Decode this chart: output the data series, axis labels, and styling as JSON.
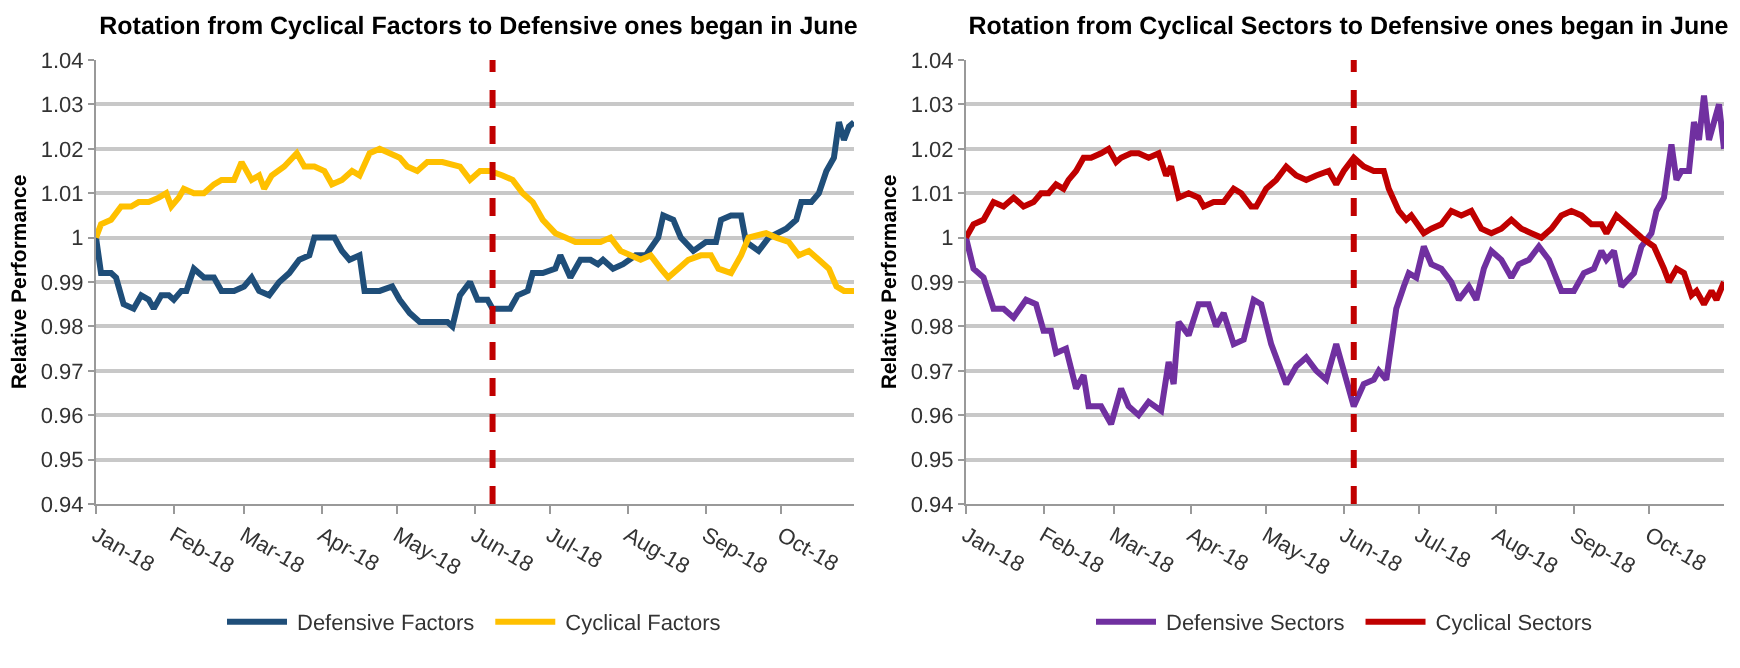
{
  "chart_data": [
    {
      "type": "line",
      "title": "Rotation from Cyclical Factors to Defensive ones began in June",
      "ylabel": "Relative Performance",
      "xlim": [
        "2018-01-01",
        "2018-10-30"
      ],
      "xticks": [
        {
          "value": "2018-01-01",
          "label": "Jan-18"
        },
        {
          "value": "2018-02-01",
          "label": "Feb-18"
        },
        {
          "value": "2018-03-01",
          "label": "Mar-18"
        },
        {
          "value": "2018-04-01",
          "label": "Apr-18"
        },
        {
          "value": "2018-05-01",
          "label": "May-18"
        },
        {
          "value": "2018-06-01",
          "label": "Jun-18"
        },
        {
          "value": "2018-07-01",
          "label": "Jul-18"
        },
        {
          "value": "2018-08-01",
          "label": "Aug-18"
        },
        {
          "value": "2018-09-01",
          "label": "Sep-18"
        },
        {
          "value": "2018-10-01",
          "label": "Oct-18"
        }
      ],
      "ylim": [
        0.94,
        1.04
      ],
      "yticks": [
        0.94,
        0.95,
        0.96,
        0.97,
        0.98,
        0.99,
        1,
        1.01,
        1.02,
        1.03,
        1.04
      ],
      "grid": "y",
      "legend": "bottom",
      "marker": "none",
      "line_style": "solid",
      "ref_lines": [
        {
          "axis": "x",
          "value": "2018-06-08",
          "color": "#c00000",
          "line_style": "dashed"
        }
      ],
      "series": [
        {
          "name": "Defensive Factors",
          "color": "#1f4e79",
          "x": [
            "2018-01-01",
            "2018-01-03",
            "2018-01-07",
            "2018-01-09",
            "2018-01-12",
            "2018-01-16",
            "2018-01-19",
            "2018-01-22",
            "2018-01-24",
            "2018-01-27",
            "2018-01-30",
            "2018-02-01",
            "2018-02-04",
            "2018-02-06",
            "2018-02-09",
            "2018-02-13",
            "2018-02-17",
            "2018-02-20",
            "2018-02-25",
            "2018-03-01",
            "2018-03-04",
            "2018-03-07",
            "2018-03-11",
            "2018-03-15",
            "2018-03-19",
            "2018-03-23",
            "2018-03-27",
            "2018-03-29",
            "2018-04-02",
            "2018-04-06",
            "2018-04-09",
            "2018-04-12",
            "2018-04-16",
            "2018-04-18",
            "2018-04-24",
            "2018-04-29",
            "2018-05-02",
            "2018-05-06",
            "2018-05-10",
            "2018-05-15",
            "2018-05-21",
            "2018-05-23",
            "2018-05-26",
            "2018-05-30",
            "2018-06-02",
            "2018-06-06",
            "2018-06-08",
            "2018-06-11",
            "2018-06-15",
            "2018-06-18",
            "2018-06-22",
            "2018-06-24",
            "2018-06-28",
            "2018-07-03",
            "2018-07-05",
            "2018-07-09",
            "2018-07-13",
            "2018-07-17",
            "2018-07-20",
            "2018-07-22",
            "2018-07-26",
            "2018-07-30",
            "2018-08-04",
            "2018-08-08",
            "2018-08-13",
            "2018-08-15",
            "2018-08-19",
            "2018-08-22",
            "2018-08-27",
            "2018-09-01",
            "2018-09-05",
            "2018-09-07",
            "2018-09-11",
            "2018-09-15",
            "2018-09-17",
            "2018-09-22",
            "2018-09-26",
            "2018-10-03",
            "2018-10-07",
            "2018-10-09",
            "2018-10-13",
            "2018-10-16",
            "2018-10-19",
            "2018-10-22",
            "2018-10-24",
            "2018-10-26",
            "2018-10-28",
            "2018-10-30"
          ],
          "values": [
            1.0,
            0.992,
            0.992,
            0.991,
            0.985,
            0.984,
            0.987,
            0.986,
            0.984,
            0.987,
            0.987,
            0.986,
            0.988,
            0.988,
            0.993,
            0.991,
            0.991,
            0.988,
            0.988,
            0.989,
            0.991,
            0.988,
            0.987,
            0.99,
            0.992,
            0.995,
            0.996,
            1.0,
            1.0,
            1.0,
            0.997,
            0.995,
            0.996,
            0.988,
            0.988,
            0.989,
            0.986,
            0.983,
            0.981,
            0.981,
            0.981,
            0.98,
            0.987,
            0.99,
            0.986,
            0.986,
            0.984,
            0.984,
            0.984,
            0.987,
            0.988,
            0.992,
            0.992,
            0.993,
            0.996,
            0.991,
            0.995,
            0.995,
            0.994,
            0.995,
            0.993,
            0.994,
            0.996,
            0.996,
            1.0,
            1.005,
            1.004,
            1.0,
            0.997,
            0.999,
            0.999,
            1.004,
            1.005,
            1.005,
            0.999,
            0.997,
            1.0,
            1.002,
            1.004,
            1.008,
            1.008,
            1.01,
            1.015,
            1.018,
            1.026,
            1.022,
            1.025,
            1.026
          ]
        },
        {
          "name": "Cyclical Factors",
          "color": "#ffc000",
          "x": [
            "2018-01-01",
            "2018-01-03",
            "2018-01-07",
            "2018-01-11",
            "2018-01-15",
            "2018-01-18",
            "2018-01-22",
            "2018-01-26",
            "2018-01-29",
            "2018-01-31",
            "2018-02-03",
            "2018-02-05",
            "2018-02-09",
            "2018-02-13",
            "2018-02-17",
            "2018-02-20",
            "2018-02-25",
            "2018-02-28",
            "2018-03-04",
            "2018-03-07",
            "2018-03-09",
            "2018-03-12",
            "2018-03-17",
            "2018-03-22",
            "2018-03-25",
            "2018-03-29",
            "2018-04-02",
            "2018-04-05",
            "2018-04-09",
            "2018-04-13",
            "2018-04-16",
            "2018-04-20",
            "2018-04-24",
            "2018-04-28",
            "2018-05-02",
            "2018-05-05",
            "2018-05-09",
            "2018-05-13",
            "2018-05-19",
            "2018-05-26",
            "2018-05-30",
            "2018-06-03",
            "2018-06-07",
            "2018-06-12",
            "2018-06-16",
            "2018-06-20",
            "2018-06-24",
            "2018-06-28",
            "2018-07-03",
            "2018-07-07",
            "2018-07-11",
            "2018-07-16",
            "2018-07-21",
            "2018-07-25",
            "2018-07-29",
            "2018-08-02",
            "2018-08-06",
            "2018-08-10",
            "2018-08-14",
            "2018-08-17",
            "2018-08-21",
            "2018-08-25",
            "2018-08-30",
            "2018-09-03",
            "2018-09-06",
            "2018-09-11",
            "2018-09-15",
            "2018-09-18",
            "2018-09-25",
            "2018-09-29",
            "2018-10-04",
            "2018-10-08",
            "2018-10-12",
            "2018-10-16",
            "2018-10-20",
            "2018-10-23",
            "2018-10-26",
            "2018-10-30"
          ],
          "values": [
            1.0,
            1.003,
            1.004,
            1.007,
            1.007,
            1.008,
            1.008,
            1.009,
            1.01,
            1.007,
            1.009,
            1.011,
            1.01,
            1.01,
            1.012,
            1.013,
            1.013,
            1.017,
            1.013,
            1.014,
            1.011,
            1.014,
            1.016,
            1.019,
            1.016,
            1.016,
            1.015,
            1.012,
            1.013,
            1.015,
            1.014,
            1.019,
            1.02,
            1.019,
            1.018,
            1.016,
            1.015,
            1.017,
            1.017,
            1.016,
            1.013,
            1.015,
            1.015,
            1.014,
            1.013,
            1.01,
            1.008,
            1.004,
            1.001,
            1.0,
            0.999,
            0.999,
            0.999,
            1.0,
            0.997,
            0.996,
            0.995,
            0.996,
            0.993,
            0.991,
            0.993,
            0.995,
            0.996,
            0.996,
            0.993,
            0.992,
            0.996,
            1.0,
            1.001,
            1.0,
            0.999,
            0.996,
            0.997,
            0.995,
            0.993,
            0.989,
            0.988,
            0.988
          ]
        }
      ]
    },
    {
      "type": "line",
      "title": "Rotation from Cyclical Sectors to Defensive ones began in June",
      "ylabel": "Relative Performance",
      "xlim": [
        "2018-01-01",
        "2018-10-31"
      ],
      "xticks": [
        {
          "value": "2018-01-01",
          "label": "Jan-18"
        },
        {
          "value": "2018-02-01",
          "label": "Feb-18"
        },
        {
          "value": "2018-03-01",
          "label": "Mar-18"
        },
        {
          "value": "2018-04-01",
          "label": "Apr-18"
        },
        {
          "value": "2018-05-01",
          "label": "May-18"
        },
        {
          "value": "2018-06-01",
          "label": "Jun-18"
        },
        {
          "value": "2018-07-01",
          "label": "Jul-18"
        },
        {
          "value": "2018-08-01",
          "label": "Aug-18"
        },
        {
          "value": "2018-09-01",
          "label": "Sep-18"
        },
        {
          "value": "2018-10-01",
          "label": "Oct-18"
        }
      ],
      "ylim": [
        0.94,
        1.04
      ],
      "yticks": [
        0.94,
        0.95,
        0.96,
        0.97,
        0.98,
        0.99,
        1,
        1.01,
        1.02,
        1.03,
        1.04
      ],
      "grid": "y",
      "legend": "bottom",
      "marker": "none",
      "line_style": "solid",
      "ref_lines": [
        {
          "axis": "x",
          "value": "2018-06-05",
          "color": "#c00000",
          "line_style": "dashed"
        }
      ],
      "series": [
        {
          "name": "Defensive Sectors",
          "color": "#7030a0",
          "x": [
            "2018-01-01",
            "2018-01-04",
            "2018-01-08",
            "2018-01-12",
            "2018-01-16",
            "2018-01-20",
            "2018-01-25",
            "2018-01-29",
            "2018-02-01",
            "2018-02-04",
            "2018-02-06",
            "2018-02-10",
            "2018-02-14",
            "2018-02-17",
            "2018-02-19",
            "2018-02-24",
            "2018-02-28",
            "2018-03-04",
            "2018-03-07",
            "2018-03-11",
            "2018-03-15",
            "2018-03-20",
            "2018-03-23",
            "2018-03-25",
            "2018-03-27",
            "2018-03-31",
            "2018-04-04",
            "2018-04-08",
            "2018-04-11",
            "2018-04-14",
            "2018-04-18",
            "2018-04-22",
            "2018-04-26",
            "2018-04-29",
            "2018-05-03",
            "2018-05-05",
            "2018-05-09",
            "2018-05-13",
            "2018-05-17",
            "2018-05-21",
            "2018-05-25",
            "2018-05-29",
            "2018-06-01",
            "2018-06-05",
            "2018-06-09",
            "2018-06-13",
            "2018-06-15",
            "2018-06-18",
            "2018-06-22",
            "2018-06-25",
            "2018-06-27",
            "2018-06-30",
            "2018-07-03",
            "2018-07-06",
            "2018-07-10",
            "2018-07-14",
            "2018-07-17",
            "2018-07-21",
            "2018-07-24",
            "2018-07-27",
            "2018-07-30",
            "2018-08-03",
            "2018-08-07",
            "2018-08-10",
            "2018-08-14",
            "2018-08-18",
            "2018-08-22",
            "2018-08-27",
            "2018-09-01",
            "2018-09-05",
            "2018-09-09",
            "2018-09-12",
            "2018-09-14",
            "2018-09-17",
            "2018-09-20",
            "2018-09-25",
            "2018-09-28",
            "2018-10-02",
            "2018-10-04",
            "2018-10-07",
            "2018-10-10",
            "2018-10-12",
            "2018-10-14",
            "2018-10-17",
            "2018-10-19",
            "2018-10-21",
            "2018-10-23",
            "2018-10-25",
            "2018-10-27",
            "2018-10-29",
            "2018-10-31"
          ],
          "values": [
            1.0,
            0.993,
            0.991,
            0.984,
            0.984,
            0.982,
            0.986,
            0.985,
            0.979,
            0.979,
            0.974,
            0.975,
            0.966,
            0.969,
            0.962,
            0.962,
            0.958,
            0.966,
            0.962,
            0.96,
            0.963,
            0.961,
            0.972,
            0.967,
            0.981,
            0.978,
            0.985,
            0.985,
            0.98,
            0.983,
            0.976,
            0.977,
            0.986,
            0.985,
            0.976,
            0.973,
            0.967,
            0.971,
            0.973,
            0.97,
            0.968,
            0.976,
            0.97,
            0.962,
            0.967,
            0.968,
            0.97,
            0.968,
            0.984,
            0.989,
            0.992,
            0.991,
            0.998,
            0.994,
            0.993,
            0.99,
            0.986,
            0.989,
            0.986,
            0.993,
            0.997,
            0.995,
            0.991,
            0.994,
            0.995,
            0.998,
            0.995,
            0.988,
            0.988,
            0.992,
            0.993,
            0.997,
            0.995,
            0.997,
            0.989,
            0.992,
            0.998,
            1.001,
            1.006,
            1.009,
            1.021,
            1.013,
            1.015,
            1.015,
            1.026,
            1.022,
            1.032,
            1.022,
            1.026,
            1.03,
            1.02
          ]
        },
        {
          "name": "Cyclical Sectors",
          "color": "#c00000",
          "x": [
            "2018-01-01",
            "2018-01-04",
            "2018-01-08",
            "2018-01-12",
            "2018-01-16",
            "2018-01-20",
            "2018-01-24",
            "2018-01-28",
            "2018-01-31",
            "2018-02-03",
            "2018-02-06",
            "2018-02-09",
            "2018-02-11",
            "2018-02-14",
            "2018-02-17",
            "2018-02-20",
            "2018-02-24",
            "2018-02-27",
            "2018-03-02",
            "2018-03-04",
            "2018-03-08",
            "2018-03-11",
            "2018-03-15",
            "2018-03-19",
            "2018-03-22",
            "2018-03-24",
            "2018-03-27",
            "2018-03-31",
            "2018-04-04",
            "2018-04-06",
            "2018-04-10",
            "2018-04-14",
            "2018-04-18",
            "2018-04-21",
            "2018-04-25",
            "2018-04-27",
            "2018-05-01",
            "2018-05-05",
            "2018-05-09",
            "2018-05-13",
            "2018-05-17",
            "2018-05-21",
            "2018-05-26",
            "2018-05-29",
            "2018-06-01",
            "2018-06-05",
            "2018-06-09",
            "2018-06-13",
            "2018-06-17",
            "2018-06-19",
            "2018-06-23",
            "2018-06-26",
            "2018-06-28",
            "2018-07-03",
            "2018-07-06",
            "2018-07-10",
            "2018-07-14",
            "2018-07-18",
            "2018-07-22",
            "2018-07-26",
            "2018-07-30",
            "2018-08-03",
            "2018-08-07",
            "2018-08-11",
            "2018-08-15",
            "2018-08-19",
            "2018-08-23",
            "2018-08-27",
            "2018-08-31",
            "2018-09-04",
            "2018-09-08",
            "2018-09-12",
            "2018-09-14",
            "2018-09-18",
            "2018-09-22",
            "2018-09-28",
            "2018-10-03",
            "2018-10-07",
            "2018-10-09",
            "2018-10-12",
            "2018-10-15",
            "2018-10-18",
            "2018-10-20",
            "2018-10-23",
            "2018-10-26",
            "2018-10-28",
            "2018-10-31"
          ],
          "values": [
            1.0,
            1.003,
            1.004,
            1.008,
            1.007,
            1.009,
            1.007,
            1.008,
            1.01,
            1.01,
            1.012,
            1.011,
            1.013,
            1.015,
            1.018,
            1.018,
            1.019,
            1.02,
            1.017,
            1.018,
            1.019,
            1.019,
            1.018,
            1.019,
            1.014,
            1.016,
            1.009,
            1.01,
            1.009,
            1.007,
            1.008,
            1.008,
            1.011,
            1.01,
            1.007,
            1.007,
            1.011,
            1.013,
            1.016,
            1.014,
            1.013,
            1.014,
            1.015,
            1.012,
            1.015,
            1.018,
            1.016,
            1.015,
            1.015,
            1.011,
            1.006,
            1.004,
            1.005,
            1.001,
            1.002,
            1.003,
            1.006,
            1.005,
            1.006,
            1.002,
            1.001,
            1.002,
            1.004,
            1.002,
            1.001,
            1.0,
            1.002,
            1.005,
            1.006,
            1.005,
            1.003,
            1.003,
            1.001,
            1.005,
            1.003,
            1.0,
            0.998,
            0.993,
            0.99,
            0.993,
            0.992,
            0.987,
            0.988,
            0.985,
            0.988,
            0.986,
            0.99
          ]
        }
      ]
    }
  ]
}
